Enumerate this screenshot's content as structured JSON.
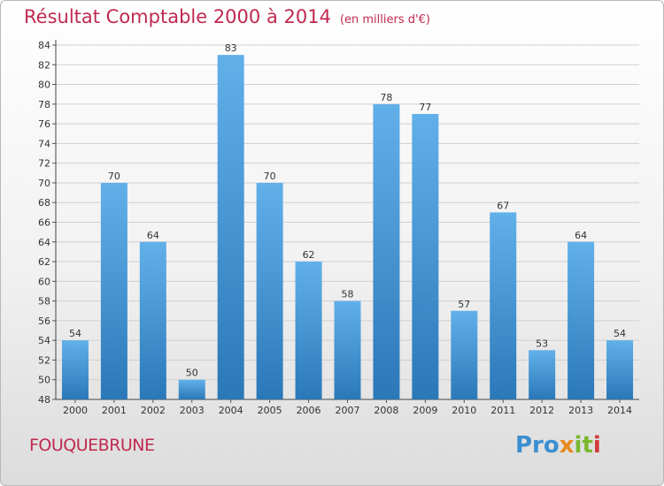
{
  "title": "Résultat Comptable 2000 à 2014",
  "unit": "(en milliers d'€)",
  "commune": "FOUQUEBRUNE",
  "logo": {
    "p1": "Pro",
    "p2": "x",
    "p3": "it",
    "p4": "i"
  },
  "colors": {
    "title": "#c0294f",
    "bar_top": "#62b0ea",
    "bar_bottom": "#2a78b8",
    "grid": "#cfcfcf"
  },
  "chart_data": {
    "type": "bar",
    "categories": [
      "2000",
      "2001",
      "2002",
      "2003",
      "2004",
      "2005",
      "2006",
      "2007",
      "2008",
      "2009",
      "2010",
      "2011",
      "2012",
      "2013",
      "2014"
    ],
    "values": [
      54,
      70,
      64,
      50,
      83,
      70,
      62,
      58,
      78,
      77,
      57,
      67,
      53,
      64,
      54
    ],
    "ylim": [
      48,
      84
    ],
    "ytick_step": 2,
    "title": "Résultat Comptable 2000 à 2014",
    "xlabel": "",
    "ylabel": ""
  }
}
